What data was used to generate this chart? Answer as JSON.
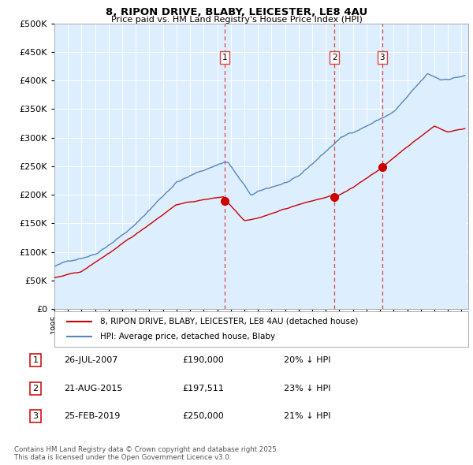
{
  "title": "8, RIPON DRIVE, BLABY, LEICESTER, LE8 4AU",
  "subtitle": "Price paid vs. HM Land Registry's House Price Index (HPI)",
  "legend_label_red": "8, RIPON DRIVE, BLABY, LEICESTER, LE8 4AU (detached house)",
  "legend_label_blue": "HPI: Average price, detached house, Blaby",
  "sale1_date": "26-JUL-2007",
  "sale1_price": 190000,
  "sale1_pct": "20%",
  "sale2_date": "21-AUG-2015",
  "sale2_price": 197511,
  "sale2_pct": "23%",
  "sale3_date": "25-FEB-2019",
  "sale3_price": 250000,
  "sale3_pct": "21%",
  "footnote": "Contains HM Land Registry data © Crown copyright and database right 2025.\nThis data is licensed under the Open Government Licence v3.0.",
  "ylim": [
    0,
    500000
  ],
  "xlim_start": 1995.0,
  "xlim_end": 2025.5,
  "background_color": "#ffffff",
  "plot_bg_color": "#ddeeff",
  "grid_color": "#ffffff",
  "red_color": "#cc0000",
  "blue_color": "#5588bb",
  "vline_color": "#dd4444",
  "sale1_year": 2007.57,
  "sale2_year": 2015.64,
  "sale3_year": 2019.15,
  "yticks": [
    0,
    50000,
    100000,
    150000,
    200000,
    250000,
    300000,
    350000,
    400000,
    450000,
    500000
  ]
}
